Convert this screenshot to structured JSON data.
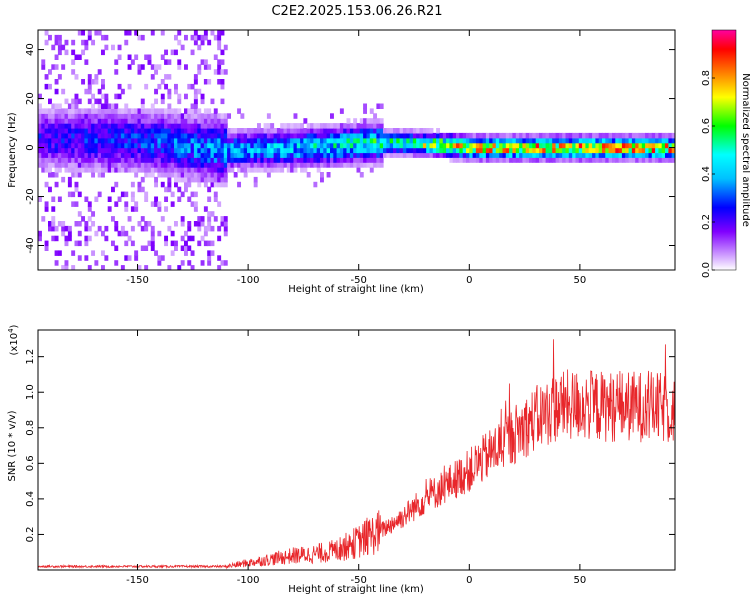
{
  "title": "C2E2.2025.153.06.26.R21",
  "chart_data": [
    {
      "type": "heatmap",
      "name": "spectrogram",
      "xlabel": "Height of straight line (km)",
      "ylabel": "Frequency (Hz)",
      "xlim": [
        -195,
        93
      ],
      "ylim": [
        -50,
        48
      ],
      "xticks": [
        -150,
        -100,
        -50,
        0,
        50
      ],
      "yticks": [
        -40,
        -20,
        0,
        20,
        40
      ],
      "grid": false,
      "colorbar": {
        "label": "Normalized spectral amplitude",
        "range": [
          0.0,
          1.0
        ],
        "ticks": [
          0.0,
          0.2,
          0.4,
          0.6,
          0.8
        ],
        "tick_labels": [
          "0.0",
          "0.2",
          "0.4",
          "0.6",
          "0.8"
        ]
      },
      "ridge": {
        "x": [
          -195,
          -150,
          -110,
          -80,
          -60,
          -45,
          -30,
          -10,
          0,
          30,
          60,
          93
        ],
        "y": [
          3,
          2,
          -2,
          -1,
          0,
          1,
          1,
          0,
          -1,
          -1,
          -1,
          -1
        ],
        "amplitude": [
          0.25,
          0.3,
          0.4,
          0.45,
          0.5,
          0.55,
          0.6,
          0.75,
          0.8,
          0.85,
          0.85,
          0.85
        ]
      }
    },
    {
      "type": "line",
      "name": "snr",
      "xlabel": "Height of straight line (km)",
      "ylabel": "SNR (10 * v/v)",
      "y_multiplier_label": "(x10",
      "y_multiplier_exp": "4",
      "y_multiplier_close": ")",
      "xlim": [
        -195,
        93
      ],
      "ylim": [
        0.0,
        1.35
      ],
      "xticks": [
        -150,
        -100,
        -50,
        0,
        50
      ],
      "yticks": [
        0.2,
        0.4,
        0.6,
        0.8,
        1.0,
        1.2
      ],
      "ytick_labels": [
        "0.2",
        "0.4",
        "0.6",
        "0.8",
        "1.0",
        "1.2"
      ],
      "color": "#e8262a",
      "grid": false,
      "trend": {
        "x": [
          -195,
          -150,
          -110,
          -100,
          -90,
          -80,
          -70,
          -60,
          -50,
          -40,
          -30,
          -20,
          -10,
          0,
          10,
          20,
          30,
          40,
          50,
          60,
          70,
          80,
          93
        ],
        "y": [
          0.02,
          0.02,
          0.02,
          0.04,
          0.06,
          0.08,
          0.09,
          0.11,
          0.16,
          0.22,
          0.3,
          0.4,
          0.48,
          0.56,
          0.66,
          0.76,
          0.85,
          0.92,
          0.93,
          0.92,
          0.92,
          0.92,
          0.9
        ]
      }
    }
  ],
  "colormap": [
    "#ffffff",
    "#8000ff",
    "#0000ff",
    "#00ffff",
    "#00ff00",
    "#ffff00",
    "#ff8000",
    "#ff0000",
    "#ff00ff"
  ]
}
